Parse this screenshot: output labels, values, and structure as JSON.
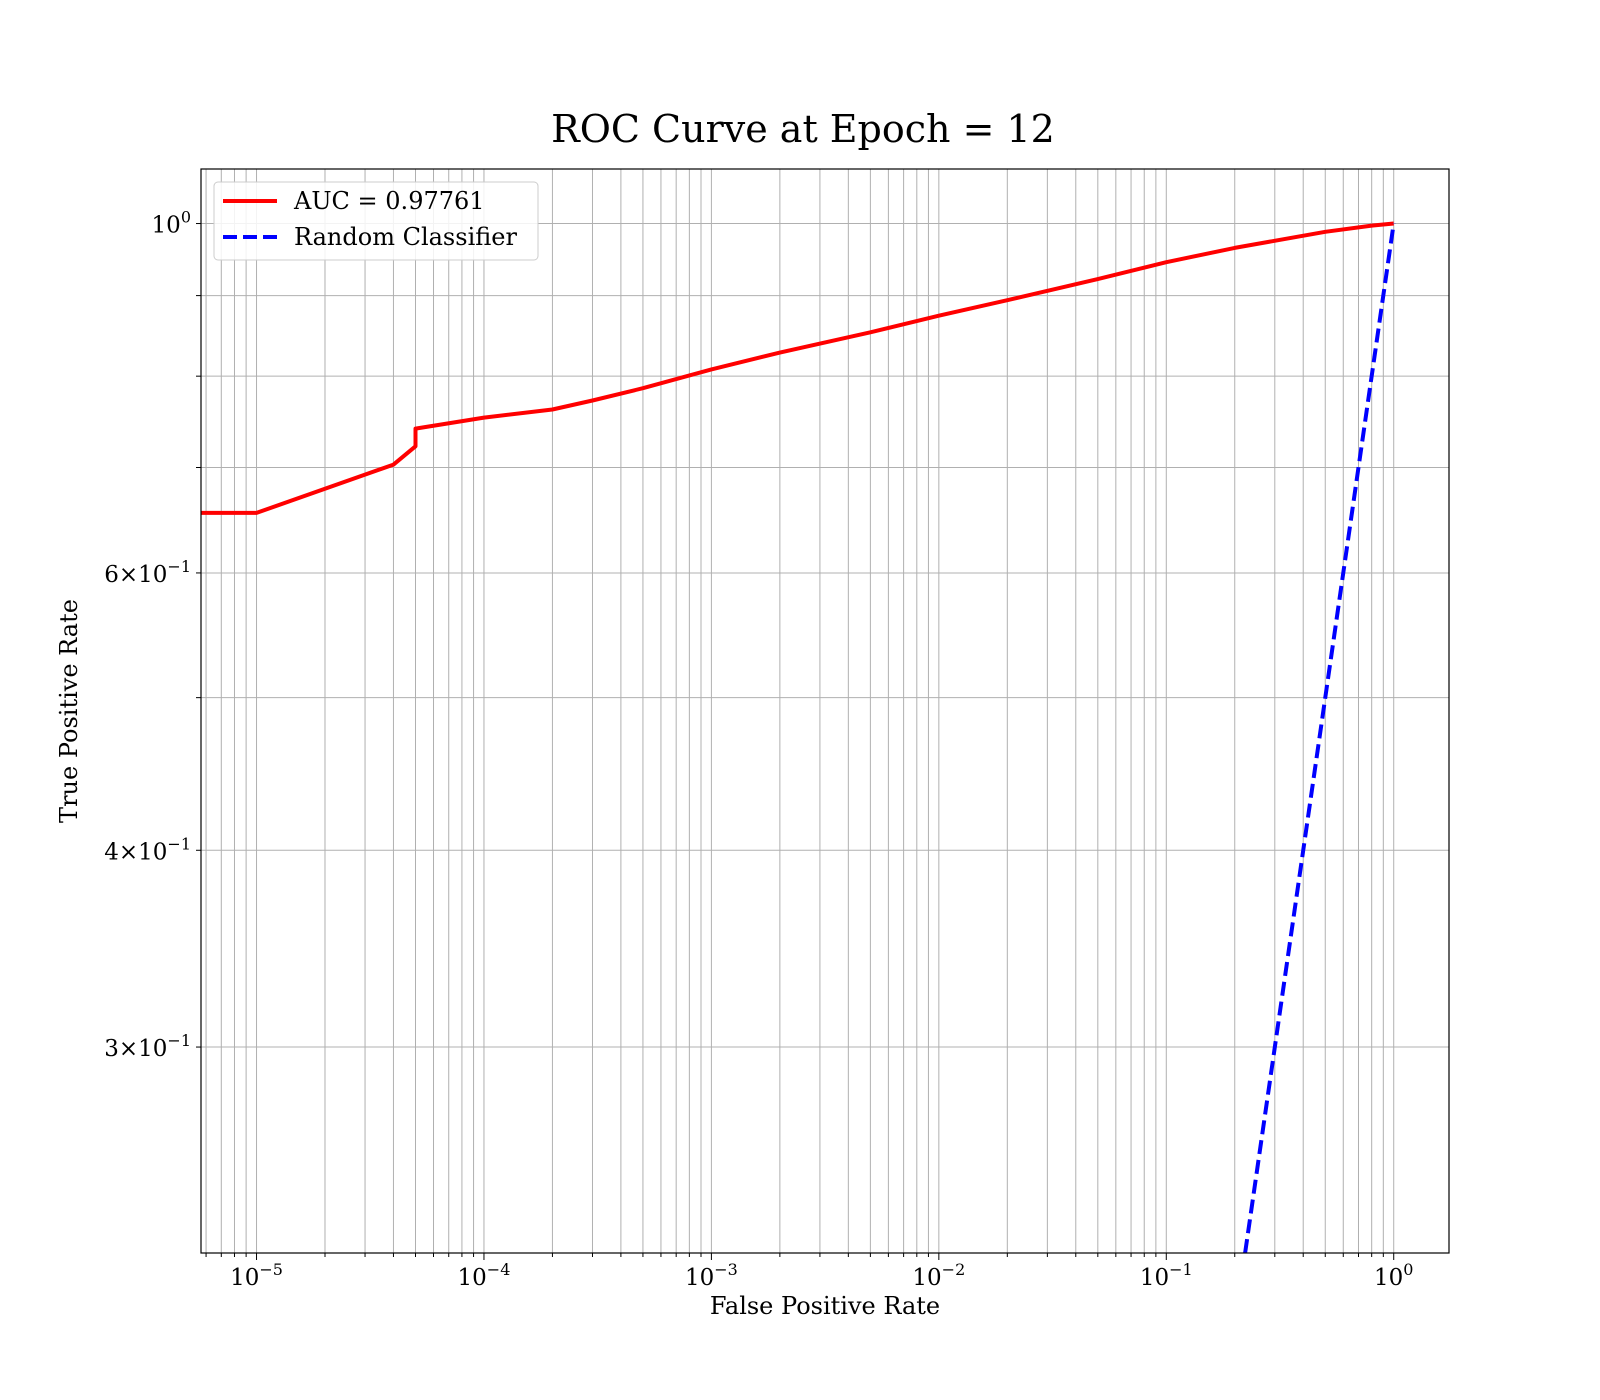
{
  "chart_data": {
    "type": "line",
    "title": "ROC Curve at Epoch = 12",
    "xlabel": "False Positive Rate",
    "ylabel": "True Positive Rate",
    "xscale": "log",
    "yscale": "log",
    "xlim": [
      5.7e-06,
      1.75
    ],
    "ylim": [
      0.222,
      1.083
    ],
    "grid": "both (major and minor)",
    "legend_position": "top-left",
    "x_ticks": [
      {
        "value": 1e-05,
        "base": "10",
        "exp": "−5"
      },
      {
        "value": 0.0001,
        "base": "10",
        "exp": "−4"
      },
      {
        "value": 0.001,
        "base": "10",
        "exp": "−3"
      },
      {
        "value": 0.01,
        "base": "10",
        "exp": "−2"
      },
      {
        "value": 0.1,
        "base": "10",
        "exp": "−1"
      },
      {
        "value": 1,
        "base": "10",
        "exp": "0"
      }
    ],
    "y_ticks": [
      {
        "value": 1.0,
        "mant": "",
        "base": "10",
        "exp": "0"
      },
      {
        "value": 0.6,
        "mant": "6×",
        "base": "10",
        "exp": "−1"
      },
      {
        "value": 0.4,
        "mant": "4×",
        "base": "10",
        "exp": "−1"
      },
      {
        "value": 0.3,
        "mant": "3×",
        "base": "10",
        "exp": "−1"
      }
    ],
    "series": [
      {
        "name": "AUC = 0.97761",
        "color": "#ff0000",
        "style": "solid",
        "x": [
          5.7e-06,
          1e-05,
          4e-05,
          5e-05,
          5e-05,
          0.0001,
          0.0002,
          0.0003,
          0.0005,
          0.001,
          0.002,
          0.005,
          0.01,
          0.02,
          0.05,
          0.1,
          0.2,
          0.5,
          0.8,
          1.0
        ],
        "y": [
          0.655,
          0.655,
          0.703,
          0.722,
          0.741,
          0.753,
          0.762,
          0.772,
          0.786,
          0.808,
          0.828,
          0.853,
          0.874,
          0.894,
          0.922,
          0.945,
          0.965,
          0.988,
          0.997,
          1.0
        ]
      },
      {
        "name": "Random Classifier",
        "color": "#0000ff",
        "style": "dashed",
        "x": [
          0.222,
          1.0
        ],
        "y": [
          0.222,
          1.0
        ]
      }
    ]
  }
}
